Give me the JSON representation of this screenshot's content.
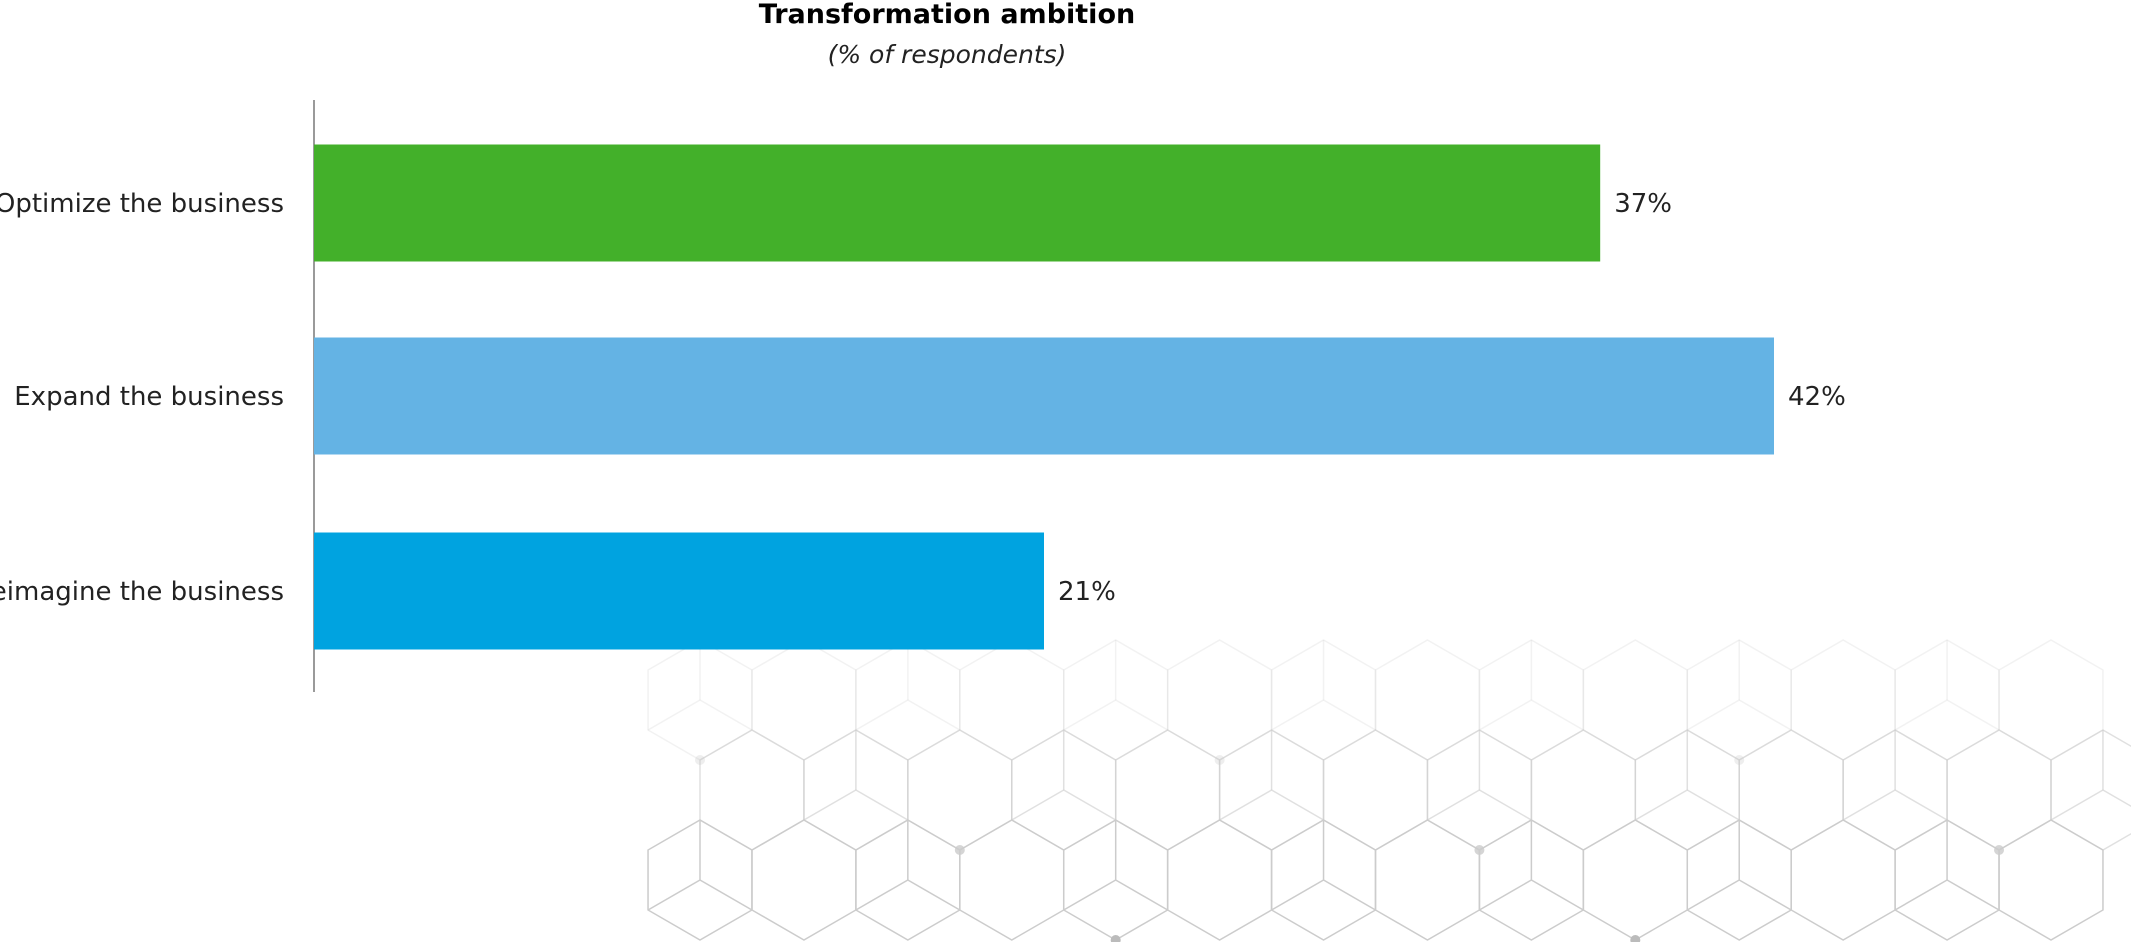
{
  "chart_data": {
    "type": "bar",
    "orientation": "horizontal",
    "title": "Transformation ambition",
    "subtitle": "(% of respondents)",
    "categories": [
      "Optimize the business",
      "Expand the business",
      "Reimagine the business"
    ],
    "values": [
      37,
      42,
      21
    ],
    "value_labels": [
      "37%",
      "42%",
      "21%"
    ],
    "colors": [
      "#43B02A",
      "#64B3E4",
      "#00A3E0"
    ],
    "xlim": [
      0,
      42
    ],
    "grid": false,
    "legend": "none"
  },
  "background": {
    "pattern": "hexagonal-cube-lattice",
    "line_color": "#CCCCCC",
    "node_color": "#BBBBBB"
  }
}
